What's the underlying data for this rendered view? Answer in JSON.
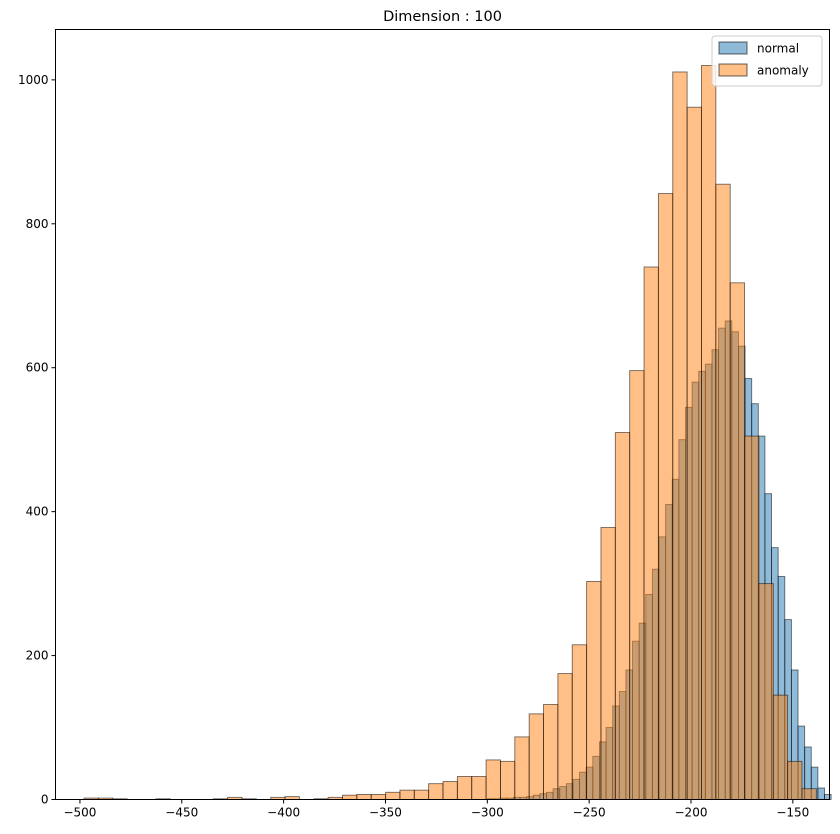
{
  "chart_data": {
    "type": "bar",
    "title": "Dimension : 100",
    "xlabel": "",
    "ylabel": "",
    "xlim": [
      -512,
      -132
    ],
    "ylim": [
      0,
      1070
    ],
    "x_ticks": [
      -500,
      -450,
      -400,
      -350,
      -300,
      -250,
      -200,
      -150
    ],
    "y_ticks": [
      0,
      200,
      400,
      600,
      800,
      1000
    ],
    "legend_position": "top-right",
    "grid": false,
    "series": [
      {
        "name": "normal",
        "color": "#1f77b4",
        "bin_start": -300.2,
        "bin_width": 3.25,
        "values": [
          1,
          1,
          2,
          2,
          3,
          3,
          4,
          6,
          8,
          10,
          15,
          18,
          22,
          28,
          38,
          45,
          60,
          80,
          100,
          130,
          150,
          180,
          220,
          245,
          285,
          320,
          365,
          410,
          445,
          500,
          545,
          580,
          595,
          605,
          625,
          655,
          665,
          650,
          630,
          585,
          550,
          505,
          425,
          350,
          310,
          250,
          180,
          102,
          73,
          45,
          16,
          7
        ]
      },
      {
        "name": "anomaly",
        "color": "#ff7f0e",
        "bin_start": -498.0,
        "bin_width": 7.05,
        "values": [
          2,
          2,
          1,
          0,
          0,
          1,
          0,
          0,
          0,
          1,
          3,
          1,
          0,
          3,
          4,
          0,
          1,
          3,
          6,
          7,
          7,
          10,
          13,
          13,
          22,
          25,
          32,
          32,
          55,
          53,
          87,
          119,
          132,
          175,
          215,
          303,
          378,
          510,
          596,
          740,
          842,
          1011,
          962,
          1020,
          855,
          718,
          505,
          300,
          145,
          53,
          15
        ]
      }
    ]
  }
}
